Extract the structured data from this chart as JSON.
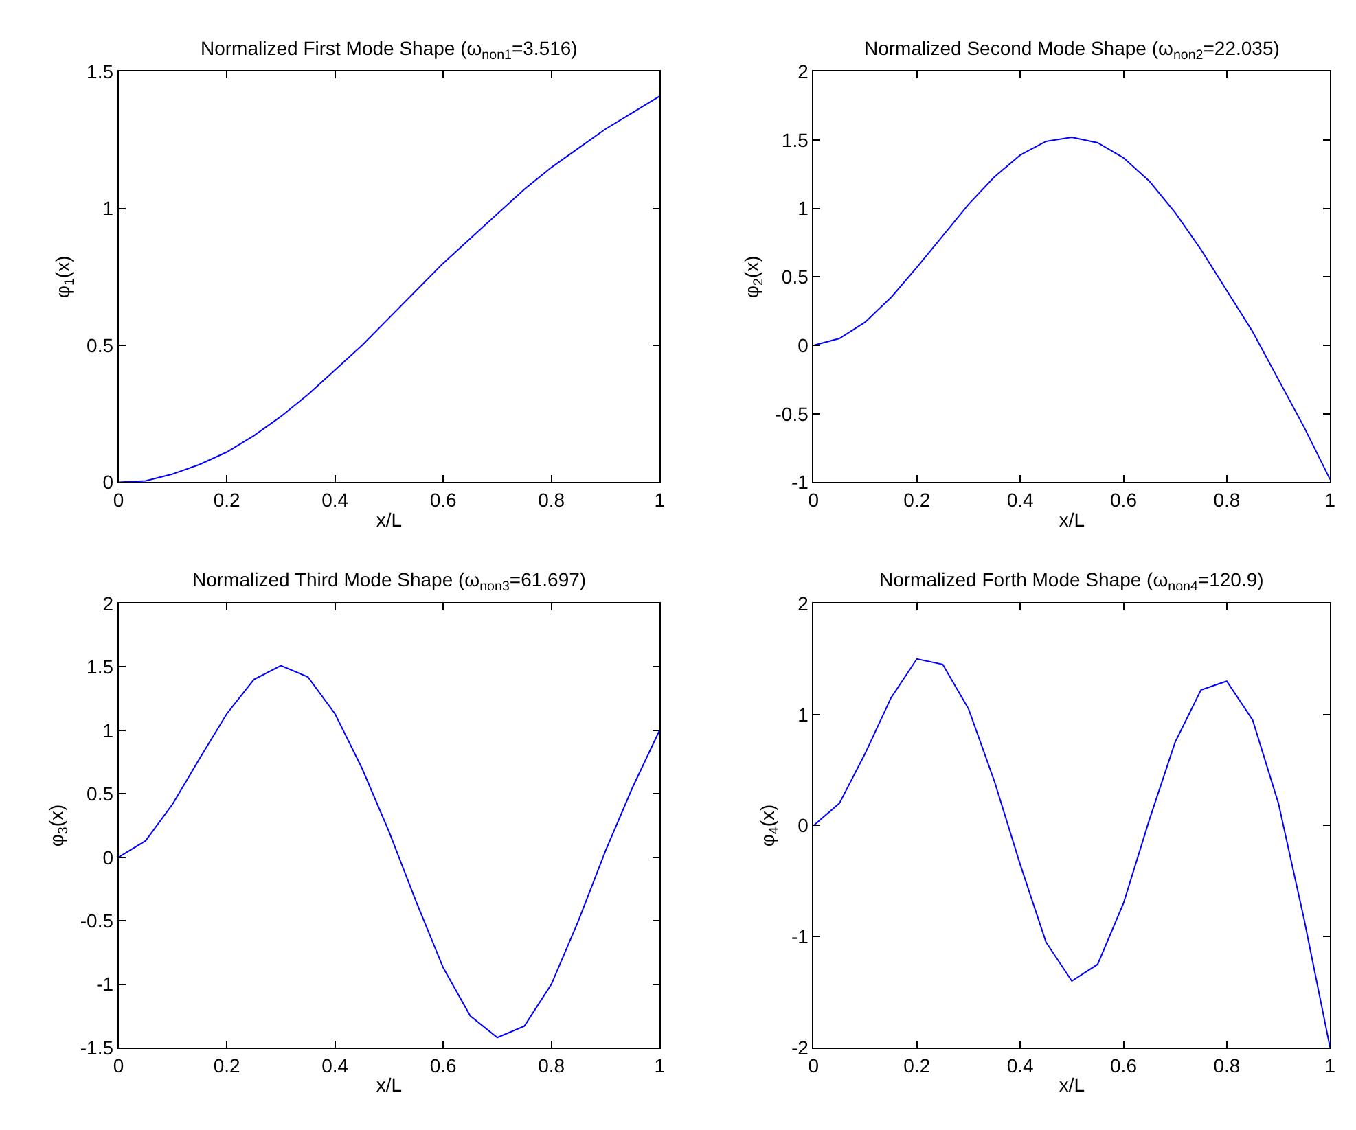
{
  "chart_data": [
    {
      "type": "line",
      "title": "Normalized First Mode Shape (ω$_{non1}$=3.516)",
      "xlabel": "x/L",
      "ylabel": "φ$_{1}$(x)",
      "x": [
        0,
        0.05,
        0.1,
        0.15,
        0.2,
        0.25,
        0.3,
        0.35,
        0.4,
        0.45,
        0.5,
        0.55,
        0.6,
        0.65,
        0.7,
        0.75,
        0.8,
        0.85,
        0.9,
        0.95,
        1
      ],
      "series": [
        {
          "color": "#0000ff",
          "values": [
            0,
            0.005,
            0.03,
            0.065,
            0.11,
            0.17,
            0.24,
            0.32,
            0.41,
            0.5,
            0.6,
            0.7,
            0.8,
            0.89,
            0.98,
            1.07,
            1.15,
            1.22,
            1.29,
            1.35,
            1.41
          ]
        }
      ],
      "xlim": [
        0,
        1
      ],
      "xticks": [
        0,
        0.2,
        0.4,
        0.6,
        0.8,
        1
      ],
      "ylim": [
        0,
        1.5
      ],
      "yticks": [
        0,
        0.5,
        1,
        1.5
      ],
      "marker": "none",
      "line_style": "solid"
    },
    {
      "type": "line",
      "title": "Normalized Second Mode Shape (ω$_{non2}$=22.035)",
      "xlabel": "x/L",
      "ylabel": "φ$_{2}$(x)",
      "x": [
        0,
        0.05,
        0.1,
        0.15,
        0.2,
        0.25,
        0.3,
        0.35,
        0.4,
        0.45,
        0.5,
        0.55,
        0.6,
        0.65,
        0.7,
        0.75,
        0.8,
        0.85,
        0.9,
        0.95,
        1
      ],
      "series": [
        {
          "color": "#0000ff",
          "values": [
            0,
            0.05,
            0.17,
            0.35,
            0.57,
            0.8,
            1.03,
            1.23,
            1.39,
            1.49,
            1.52,
            1.48,
            1.37,
            1.2,
            0.97,
            0.7,
            0.4,
            0.1,
            -0.25,
            -0.6,
            -0.98
          ]
        }
      ],
      "xlim": [
        0,
        1
      ],
      "xticks": [
        0,
        0.2,
        0.4,
        0.6,
        0.8,
        1
      ],
      "ylim": [
        -1,
        2
      ],
      "yticks": [
        -1,
        -0.5,
        0,
        0.5,
        1,
        1.5,
        2
      ],
      "marker": "none",
      "line_style": "solid"
    },
    {
      "type": "line",
      "title": "Normalized Third Mode Shape (ω$_{non3}$=61.697)",
      "xlabel": "x/L",
      "ylabel": "φ$_{3}$(x)",
      "x": [
        0,
        0.05,
        0.1,
        0.15,
        0.2,
        0.25,
        0.3,
        0.35,
        0.4,
        0.45,
        0.5,
        0.55,
        0.6,
        0.65,
        0.7,
        0.75,
        0.8,
        0.85,
        0.9,
        0.95,
        1
      ],
      "series": [
        {
          "color": "#0000ff",
          "values": [
            0,
            0.13,
            0.42,
            0.78,
            1.13,
            1.4,
            1.51,
            1.42,
            1.13,
            0.7,
            0.2,
            -0.35,
            -0.87,
            -1.25,
            -1.42,
            -1.33,
            -1.0,
            -0.5,
            0.05,
            0.55,
            1.0
          ]
        }
      ],
      "xlim": [
        0,
        1
      ],
      "xticks": [
        0,
        0.2,
        0.4,
        0.6,
        0.8,
        1
      ],
      "ylim": [
        -1.5,
        2
      ],
      "yticks": [
        -1.5,
        -1,
        -0.5,
        0,
        0.5,
        1,
        1.5,
        2
      ],
      "marker": "none",
      "line_style": "solid"
    },
    {
      "type": "line",
      "title": "Normalized Forth Mode Shape (ω$_{non4}$=120.9)",
      "xlabel": "x/L",
      "ylabel": "φ$_{4}$(x)",
      "x": [
        0,
        0.05,
        0.1,
        0.15,
        0.2,
        0.25,
        0.3,
        0.35,
        0.4,
        0.45,
        0.5,
        0.55,
        0.6,
        0.65,
        0.7,
        0.75,
        0.8,
        0.85,
        0.9,
        0.95,
        1
      ],
      "series": [
        {
          "color": "#0000ff",
          "values": [
            0,
            0.2,
            0.65,
            1.15,
            1.5,
            1.45,
            1.05,
            0.4,
            -0.35,
            -1.05,
            -1.4,
            -1.25,
            -0.7,
            0.05,
            0.75,
            1.22,
            1.3,
            0.95,
            0.2,
            -0.85,
            -2.0
          ]
        }
      ],
      "xlim": [
        0,
        1
      ],
      "xticks": [
        0,
        0.2,
        0.4,
        0.6,
        0.8,
        1
      ],
      "ylim": [
        -2,
        2
      ],
      "yticks": [
        -2,
        -1,
        0,
        1,
        2
      ],
      "marker": "none",
      "line_style": "solid"
    }
  ]
}
